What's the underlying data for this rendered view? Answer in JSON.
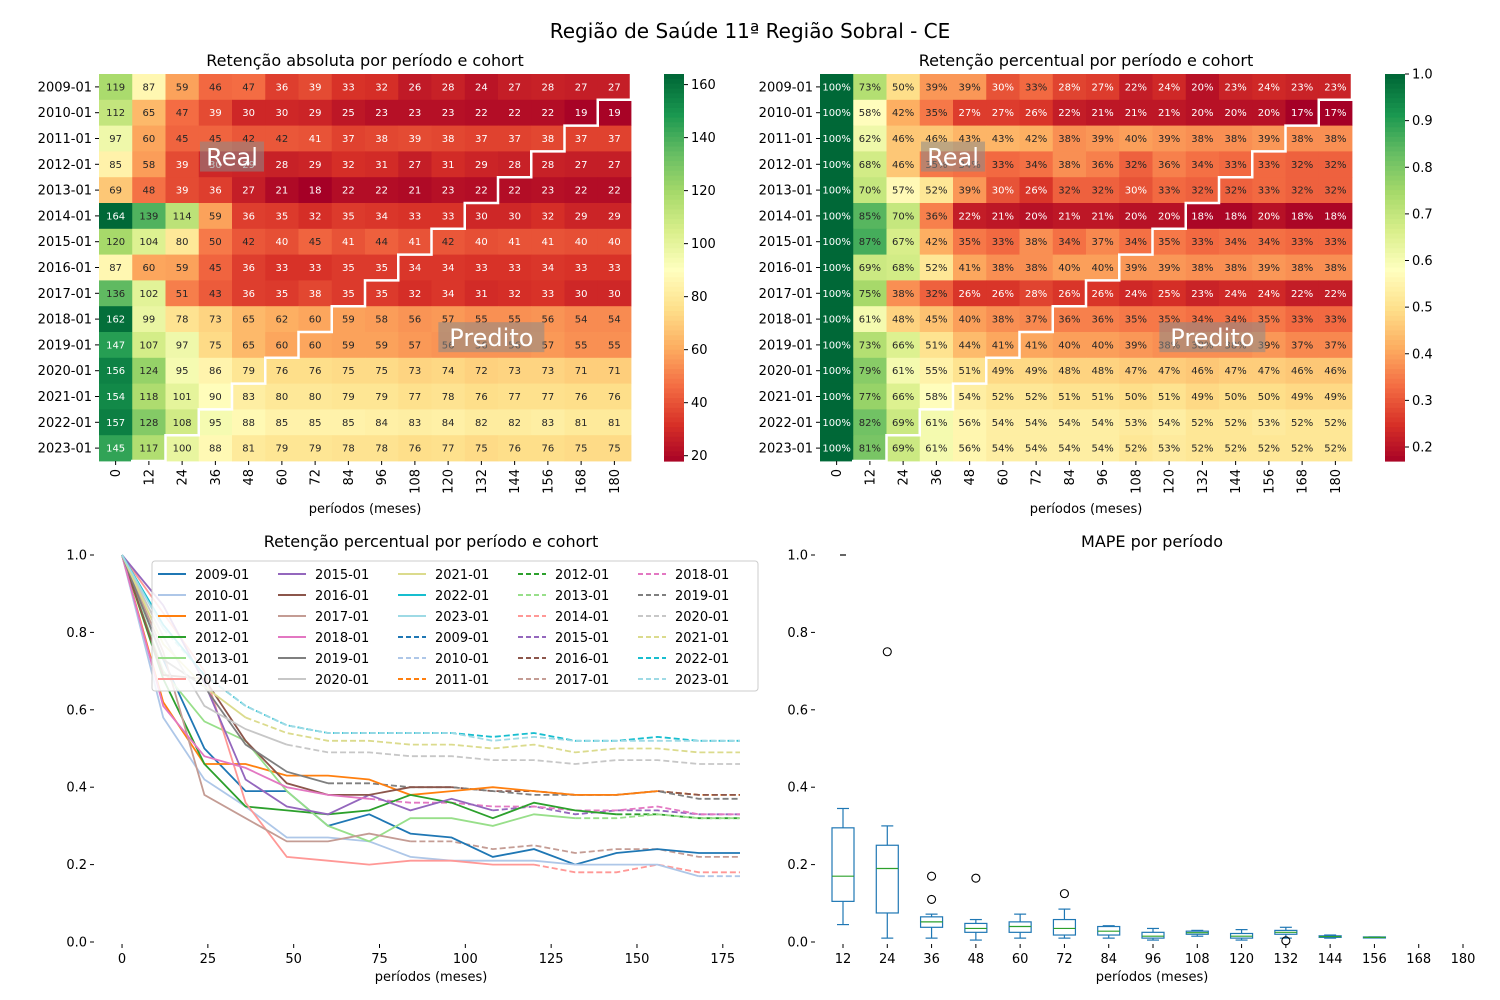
{
  "figure": {
    "suptitle": "Região de Saúde 11ª Região Sobral - CE"
  },
  "chart_data": [
    {
      "type": "heatmap",
      "title": "Retenção absoluta por período e cohort",
      "xlabel": "períodos (meses)",
      "ylabel": "",
      "rows": [
        "2009-01",
        "2010-01",
        "2011-01",
        "2012-01",
        "2013-01",
        "2014-01",
        "2015-01",
        "2016-01",
        "2017-01",
        "2018-01",
        "2019-01",
        "2020-01",
        "2021-01",
        "2022-01",
        "2023-01"
      ],
      "cols": [
        "0",
        "12",
        "24",
        "36",
        "48",
        "60",
        "72",
        "84",
        "96",
        "108",
        "120",
        "132",
        "144",
        "156",
        "168",
        "180"
      ],
      "values": [
        [
          119,
          87,
          59,
          46,
          47,
          36,
          39,
          33,
          32,
          26,
          28,
          24,
          27,
          28,
          27,
          27
        ],
        [
          112,
          65,
          47,
          39,
          30,
          30,
          29,
          25,
          23,
          23,
          23,
          22,
          22,
          22,
          19,
          19
        ],
        [
          97,
          60,
          45,
          45,
          42,
          42,
          41,
          37,
          38,
          39,
          38,
          37,
          37,
          38,
          37,
          37
        ],
        [
          85,
          58,
          39,
          30,
          29,
          28,
          29,
          32,
          31,
          27,
          31,
          29,
          28,
          28,
          27,
          27
        ],
        [
          69,
          48,
          39,
          36,
          27,
          21,
          18,
          22,
          22,
          21,
          23,
          22,
          22,
          23,
          22,
          22
        ],
        [
          164,
          139,
          114,
          59,
          36,
          35,
          32,
          35,
          34,
          33,
          33,
          30,
          30,
          32,
          29,
          29
        ],
        [
          120,
          104,
          80,
          50,
          42,
          40,
          45,
          41,
          44,
          41,
          42,
          40,
          41,
          41,
          40,
          40
        ],
        [
          87,
          60,
          59,
          45,
          36,
          33,
          33,
          35,
          35,
          34,
          34,
          33,
          33,
          34,
          33,
          33
        ],
        [
          136,
          102,
          51,
          43,
          36,
          35,
          38,
          35,
          35,
          32,
          34,
          31,
          32,
          33,
          30,
          30
        ],
        [
          162,
          99,
          78,
          73,
          65,
          62,
          60,
          59,
          58,
          56,
          57,
          55,
          55,
          56,
          54,
          54
        ],
        [
          147,
          107,
          97,
          75,
          65,
          60,
          60,
          59,
          59,
          57,
          56,
          56,
          56,
          57,
          55,
          55
        ],
        [
          156,
          124,
          95,
          86,
          79,
          76,
          76,
          75,
          75,
          73,
          74,
          72,
          73,
          73,
          71,
          71
        ],
        [
          154,
          118,
          101,
          90,
          83,
          80,
          80,
          79,
          79,
          77,
          78,
          76,
          77,
          77,
          76,
          76
        ],
        [
          157,
          128,
          108,
          95,
          88,
          85,
          85,
          85,
          84,
          83,
          84,
          82,
          82,
          83,
          81,
          81
        ],
        [
          145,
          117,
          100,
          88,
          81,
          79,
          79,
          78,
          78,
          76,
          77,
          75,
          76,
          76,
          75,
          75
        ]
      ],
      "split": [
        16,
        15,
        14,
        13,
        12,
        11,
        10,
        9,
        8,
        7,
        6,
        5,
        4,
        3,
        2,
        1
      ],
      "colorbar": {
        "min": 18,
        "max": 164,
        "ticks": [
          20,
          40,
          60,
          80,
          100,
          120,
          140,
          160
        ]
      },
      "cmap": "RdYlGn",
      "annotations": {
        "real": "Real",
        "pred": "Predito"
      }
    },
    {
      "type": "heatmap",
      "title": "Retenção percentual por período e cohort",
      "xlabel": "períodos (meses)",
      "ylabel": "",
      "rows": [
        "2009-01",
        "2010-01",
        "2011-01",
        "2012-01",
        "2013-01",
        "2014-01",
        "2015-01",
        "2016-01",
        "2017-01",
        "2018-01",
        "2019-01",
        "2020-01",
        "2021-01",
        "2022-01",
        "2023-01"
      ],
      "cols": [
        "0",
        "12",
        "24",
        "36",
        "48",
        "60",
        "72",
        "84",
        "96",
        "108",
        "120",
        "132",
        "144",
        "156",
        "168",
        "180"
      ],
      "values": [
        [
          100,
          73,
          50,
          39,
          39,
          30,
          33,
          28,
          27,
          22,
          24,
          20,
          23,
          24,
          23,
          23
        ],
        [
          100,
          58,
          42,
          35,
          27,
          27,
          26,
          22,
          21,
          21,
          21,
          20,
          20,
          20,
          17,
          17
        ],
        [
          100,
          62,
          46,
          46,
          43,
          43,
          42,
          38,
          39,
          40,
          39,
          38,
          38,
          39,
          38,
          38
        ],
        [
          100,
          68,
          46,
          35,
          34,
          33,
          34,
          38,
          36,
          32,
          36,
          34,
          33,
          33,
          32,
          32
        ],
        [
          100,
          70,
          57,
          52,
          39,
          30,
          26,
          32,
          32,
          30,
          33,
          32,
          32,
          33,
          32,
          32
        ],
        [
          100,
          85,
          70,
          36,
          22,
          21,
          20,
          21,
          21,
          20,
          20,
          18,
          18,
          20,
          18,
          18
        ],
        [
          100,
          87,
          67,
          42,
          35,
          33,
          38,
          34,
          37,
          34,
          35,
          33,
          34,
          34,
          33,
          33
        ],
        [
          100,
          69,
          68,
          52,
          41,
          38,
          38,
          40,
          40,
          39,
          39,
          38,
          38,
          39,
          38,
          38
        ],
        [
          100,
          75,
          38,
          32,
          26,
          26,
          28,
          26,
          26,
          24,
          25,
          23,
          24,
          24,
          22,
          22
        ],
        [
          100,
          61,
          48,
          45,
          40,
          38,
          37,
          36,
          36,
          35,
          35,
          34,
          34,
          35,
          33,
          33
        ],
        [
          100,
          73,
          66,
          51,
          44,
          41,
          41,
          40,
          40,
          39,
          38,
          38,
          38,
          39,
          37,
          37
        ],
        [
          100,
          79,
          61,
          55,
          51,
          49,
          49,
          48,
          48,
          47,
          47,
          46,
          47,
          47,
          46,
          46
        ],
        [
          100,
          77,
          66,
          58,
          54,
          52,
          52,
          51,
          51,
          50,
          51,
          49,
          50,
          50,
          49,
          49
        ],
        [
          100,
          82,
          69,
          61,
          56,
          54,
          54,
          54,
          54,
          53,
          54,
          52,
          52,
          53,
          52,
          52
        ],
        [
          100,
          81,
          69,
          61,
          56,
          54,
          54,
          54,
          54,
          52,
          53,
          52,
          52,
          52,
          52,
          52
        ]
      ],
      "split": [
        16,
        15,
        14,
        13,
        12,
        11,
        10,
        9,
        8,
        7,
        6,
        5,
        4,
        3,
        2,
        1
      ],
      "colorbar": {
        "min": 0.17,
        "max": 1.0,
        "ticks": [
          0.2,
          0.3,
          0.4,
          0.5,
          0.6,
          0.7,
          0.8,
          0.9,
          1.0
        ]
      },
      "cmap": "RdYlGn",
      "annotations": {
        "real": "Real",
        "pred": "Predito"
      }
    },
    {
      "type": "line",
      "title": "Retenção percentual por período e cohort",
      "xlabel": "períodos (meses)",
      "ylabel": "",
      "xlim": [
        -7,
        187
      ],
      "ylim": [
        0,
        1.0
      ],
      "xticks": [
        0,
        25,
        50,
        75,
        100,
        125,
        150,
        175
      ],
      "yticks": [
        0.0,
        0.2,
        0.4,
        0.6,
        0.8,
        1.0
      ],
      "legend_loc": "upper right",
      "legend_ncol": 5
    },
    {
      "type": "box",
      "title": "MAPE por período",
      "xlabel": "períodos (meses)",
      "ylabel": "",
      "ylim": [
        0,
        1.0
      ],
      "yticks": [
        0.0,
        0.2,
        0.4,
        0.6,
        0.8,
        1.0
      ],
      "categories": [
        "12",
        "24",
        "36",
        "48",
        "60",
        "72",
        "84",
        "96",
        "108",
        "120",
        "132",
        "144",
        "156",
        "168",
        "180"
      ],
      "boxes": [
        {
          "min": 0.045,
          "q1": 0.105,
          "median": 0.17,
          "q3": 0.295,
          "max": 0.345,
          "outliers": []
        },
        {
          "min": 0.01,
          "q1": 0.075,
          "median": 0.19,
          "q3": 0.25,
          "max": 0.3,
          "outliers": [
            0.75
          ]
        },
        {
          "min": 0.01,
          "q1": 0.038,
          "median": 0.052,
          "q3": 0.065,
          "max": 0.072,
          "outliers": [
            0.11,
            0.17
          ]
        },
        {
          "min": 0.005,
          "q1": 0.025,
          "median": 0.035,
          "q3": 0.048,
          "max": 0.058,
          "outliers": [
            0.165
          ]
        },
        {
          "min": 0.01,
          "q1": 0.025,
          "median": 0.04,
          "q3": 0.052,
          "max": 0.072,
          "outliers": []
        },
        {
          "min": 0.01,
          "q1": 0.018,
          "median": 0.035,
          "q3": 0.058,
          "max": 0.085,
          "outliers": [
            0.125
          ]
        },
        {
          "min": 0.01,
          "q1": 0.018,
          "median": 0.028,
          "q3": 0.04,
          "max": 0.042,
          "outliers": []
        },
        {
          "min": 0.005,
          "q1": 0.01,
          "median": 0.015,
          "q3": 0.025,
          "max": 0.035,
          "outliers": []
        },
        {
          "min": 0.015,
          "q1": 0.02,
          "median": 0.024,
          "q3": 0.028,
          "max": 0.03,
          "outliers": []
        },
        {
          "min": 0.005,
          "q1": 0.01,
          "median": 0.015,
          "q3": 0.022,
          "max": 0.032,
          "outliers": []
        },
        {
          "min": 0.01,
          "q1": 0.02,
          "median": 0.025,
          "q3": 0.03,
          "max": 0.038,
          "outliers": [
            0.003
          ]
        },
        {
          "min": 0.01,
          "q1": 0.012,
          "median": 0.014,
          "q3": 0.016,
          "max": 0.018,
          "outliers": []
        },
        {
          "min": 0.012,
          "q1": 0.012,
          "median": 0.012,
          "q3": 0.013,
          "max": 0.013,
          "outliers": []
        },
        null,
        null
      ],
      "extra_markers": [
        {
          "category": "12",
          "y": 1.0
        }
      ]
    }
  ],
  "colors": {
    "tab20": [
      "#1f77b4",
      "#aec7e8",
      "#ff7f0e",
      "#2ca02c",
      "#98df8a",
      "#ff9896",
      "#9467bd",
      "#8c564b",
      "#c49c94",
      "#e377c2",
      "#7f7f7f",
      "#c7c7c7",
      "#dbdb8d",
      "#17becf",
      "#9edae5"
    ],
    "box": "#1f77b4",
    "median": "#2ca02c"
  }
}
